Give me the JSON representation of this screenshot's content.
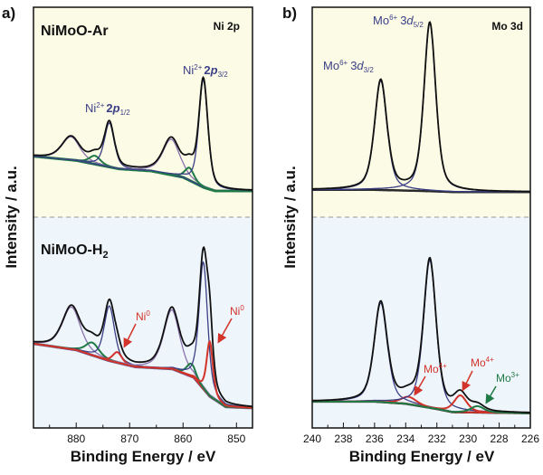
{
  "chart_data": [
    {
      "type": "line",
      "panel": "a)",
      "title": "Ni 2p",
      "xlabel": "Binding Energy / eV",
      "ylabel": "Intensity / a.u.",
      "xlim": [
        888,
        847
      ],
      "x_reversed": true,
      "x_ticks": [
        880,
        870,
        860,
        850
      ],
      "grid": false,
      "divider": "dashed",
      "colors": {
        "envelope": "#111111",
        "component": "#3b3f86",
        "satellite": "#8a72ad",
        "ni2_shakeup": "#1f7a45",
        "ni0": "#d2332a",
        "background_top": "#fbfbe6",
        "background_bottom": "#eef5fb"
      },
      "spectra": [
        {
          "sample": "NiMoO-Ar",
          "baseline": [
            [
              888,
              29
            ],
            [
              880,
              27
            ],
            [
              872,
              23
            ],
            [
              866,
              22
            ],
            [
              860,
              19
            ],
            [
              856,
              14
            ],
            [
              854,
              12.5
            ],
            [
              847,
              12.5
            ]
          ],
          "peaks": [
            {
              "center": 881.0,
              "height": 11,
              "fwhm": 4.0,
              "kind": "satellite"
            },
            {
              "center": 876.5,
              "height": 4,
              "fwhm": 2.5,
              "kind": "ni2_shakeup"
            },
            {
              "center": 873.8,
              "height": 21,
              "fwhm": 2.2,
              "kind": "component"
            },
            {
              "center": 862.2,
              "height": 17,
              "fwhm": 3.8,
              "kind": "satellite"
            },
            {
              "center": 858.8,
              "height": 6,
              "fwhm": 2.0,
              "kind": "ni2_shakeup"
            },
            {
              "center": 856.2,
              "height": 51,
              "fwhm": 2.0,
              "kind": "component"
            }
          ],
          "labels": [
            {
              "base": "Ni",
              "sup": "2+",
              "num": "2",
              "orb": "p",
              "sub": "1/2"
            },
            {
              "base": "Ni",
              "sup": "2+",
              "num": "2",
              "orb": "p",
              "sub": "3/2"
            }
          ]
        },
        {
          "sample_base": "NiMoO-H",
          "sample_sub": "2",
          "baseline": [
            [
              888,
              40
            ],
            [
              880,
              37
            ],
            [
              874,
              32
            ],
            [
              869,
              29
            ],
            [
              862,
              28
            ],
            [
              858,
              24
            ],
            [
              855,
              15
            ],
            [
              852,
              10
            ],
            [
              847,
              9.5
            ]
          ],
          "peaks": [
            {
              "center": 880.9,
              "height": 20,
              "fwhm": 4.0,
              "kind": "satellite"
            },
            {
              "center": 877.0,
              "height": 6,
              "fwhm": 3.0,
              "kind": "ni2_shakeup"
            },
            {
              "center": 873.8,
              "height": 26,
              "fwhm": 2.3,
              "kind": "component"
            },
            {
              "center": 872.3,
              "height": 5,
              "fwhm": 2.0,
              "kind": "ni0"
            },
            {
              "center": 862.1,
              "height": 28,
              "fwhm": 3.6,
              "kind": "satellite"
            },
            {
              "center": 858.5,
              "height": 6,
              "fwhm": 2.0,
              "kind": "ni2_shakeup"
            },
            {
              "center": 856.2,
              "height": 60,
              "fwhm": 1.9,
              "kind": "component"
            },
            {
              "center": 855.0,
              "height": 26,
              "fwhm": 1.4,
              "kind": "ni0"
            }
          ],
          "labels": [
            {
              "base": "Ni",
              "sup": "0"
            },
            {
              "base": "Ni",
              "sup": "0"
            }
          ]
        }
      ]
    },
    {
      "type": "line",
      "panel": "b)",
      "title": "Mo 3d",
      "xlabel": "Binding Energy / eV",
      "ylabel": "Intensity / a.u.",
      "xlim": [
        240,
        226
      ],
      "x_reversed": true,
      "x_ticks": [
        240,
        238,
        236,
        234,
        232,
        230,
        228,
        226
      ],
      "grid": false,
      "divider": "dashed",
      "colors": {
        "envelope": "#111111",
        "mo6": "#3b3f86",
        "mo4": "#d2332a",
        "mo3": "#1f7a45",
        "background_top": "#fbfbe6",
        "background_bottom": "#eef5fb"
      },
      "spectra": [
        {
          "sample": "",
          "baseline": [
            [
              240,
              13
            ],
            [
              236,
              13
            ],
            [
              233,
              12.5
            ],
            [
              231,
              12
            ],
            [
              226,
              12
            ]
          ],
          "peaks": [
            {
              "center": 235.6,
              "height": 52,
              "fwhm": 0.95,
              "kind": "mo6"
            },
            {
              "center": 232.45,
              "height": 80,
              "fwhm": 0.9,
              "kind": "mo6"
            }
          ],
          "labels": [
            {
              "base": "Mo",
              "sup": "6+",
              "num": "3",
              "orb": "d",
              "sub": "3/2"
            },
            {
              "base": "Mo",
              "sup": "6+",
              "num": "3",
              "orb": "d",
              "sub": "5/2"
            }
          ]
        },
        {
          "sample": "",
          "baseline": [
            [
              240,
              12.5
            ],
            [
              236,
              12.5
            ],
            [
              234,
              11.5
            ],
            [
              232,
              9
            ],
            [
              231,
              7.5
            ],
            [
              226,
              7
            ]
          ],
          "peaks": [
            {
              "center": 235.6,
              "height": 47,
              "fwhm": 1.0,
              "kind": "mo6"
            },
            {
              "center": 233.8,
              "height": 3.5,
              "fwhm": 1.2,
              "kind": "mo4"
            },
            {
              "center": 232.45,
              "height": 70,
              "fwhm": 0.95,
              "kind": "mo6"
            },
            {
              "center": 230.5,
              "height": 8,
              "fwhm": 1.0,
              "kind": "mo4"
            },
            {
              "center": 229.4,
              "height": 3,
              "fwhm": 1.0,
              "kind": "mo3"
            }
          ],
          "labels": [
            {
              "base": "Mo",
              "sup": "4+"
            },
            {
              "base": "Mo",
              "sup": "4+"
            },
            {
              "base": "Mo",
              "sup": "3+"
            }
          ]
        }
      ]
    }
  ]
}
